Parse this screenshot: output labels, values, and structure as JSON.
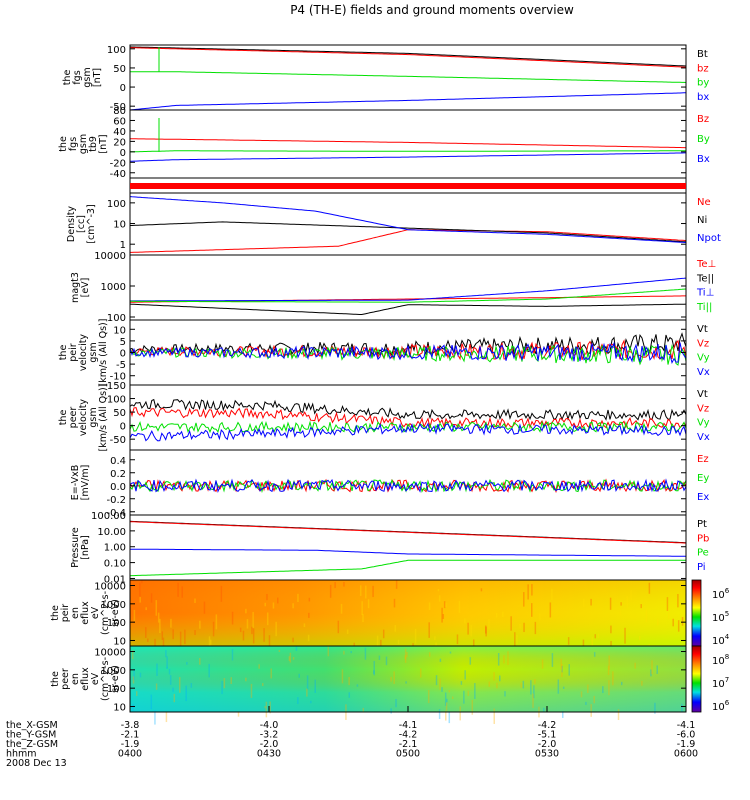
{
  "title": "P4 (TH-E) fields and ground moments overview",
  "colors": {
    "black": "#000000",
    "red": "#ff0000",
    "green": "#00e000",
    "blue": "#0000ff"
  },
  "chart_data": [
    {
      "type": "line",
      "ylabel": [
        "the",
        "fgs",
        "gsm",
        "[nT]"
      ],
      "ylim": [
        -60,
        110
      ],
      "ticks": [
        {
          "v": 100,
          "t": "100"
        },
        {
          "v": 50,
          "t": "50"
        },
        {
          "v": 0,
          "t": "0"
        },
        {
          "v": -50,
          "t": "-50"
        }
      ],
      "series": [
        {
          "name": "Bt",
          "color": "black",
          "x": [
            "04:00",
            "05:00",
            "06:00"
          ],
          "y": [
            105,
            88,
            55
          ]
        },
        {
          "name": "bz",
          "color": "red",
          "x": [
            "04:00",
            "05:00",
            "06:00"
          ],
          "y": [
            103,
            85,
            52
          ]
        },
        {
          "name": "by",
          "color": "green",
          "x": [
            "04:00",
            "04:10",
            "05:00",
            "06:00"
          ],
          "y": [
            40,
            40,
            28,
            12
          ]
        },
        {
          "name": "bx",
          "color": "blue",
          "x": [
            "04:00",
            "04:10",
            "05:00",
            "06:00"
          ],
          "y": [
            -60,
            -48,
            -35,
            -15
          ]
        }
      ]
    },
    {
      "type": "line",
      "ylabel": [
        "the",
        "fgs",
        "gsm",
        "tb9",
        "[nT]"
      ],
      "ylim": [
        -50,
        80
      ],
      "ticks": [
        {
          "v": 80,
          "t": "80"
        },
        {
          "v": 60,
          "t": "60"
        },
        {
          "v": 40,
          "t": "40"
        },
        {
          "v": 20,
          "t": "20"
        },
        {
          "v": 0,
          "t": "0"
        },
        {
          "v": -20,
          "t": "-20"
        },
        {
          "v": -40,
          "t": "-40"
        }
      ],
      "series": [
        {
          "name": "Bz",
          "color": "red",
          "x": [
            "04:00",
            "04:10",
            "05:00",
            "06:00"
          ],
          "y": [
            25,
            24,
            18,
            8
          ]
        },
        {
          "name": "By",
          "color": "green",
          "x": [
            "04:00",
            "04:10",
            "05:00",
            "06:00"
          ],
          "y": [
            0,
            2,
            1,
            2
          ]
        },
        {
          "name": "Bx",
          "color": "blue",
          "x": [
            "04:00",
            "04:10",
            "05:00",
            "06:00"
          ],
          "y": [
            -18,
            -15,
            -10,
            -2
          ]
        }
      ]
    },
    {
      "type": "line",
      "scale": "log",
      "ylabel": [
        "Density",
        "[cc]",
        "[cm^-3]"
      ],
      "ylim": [
        0.3,
        300
      ],
      "ticks": [
        {
          "v": 100,
          "t": "100"
        },
        {
          "v": 10,
          "t": "10"
        },
        {
          "v": 1,
          "t": "1"
        }
      ],
      "series": [
        {
          "name": "Ne",
          "color": "red",
          "x": [
            "04:00",
            "04:45",
            "05:00",
            "05:30",
            "06:00"
          ],
          "y": [
            0.4,
            0.8,
            5,
            4,
            1.5
          ]
        },
        {
          "name": "Ni",
          "color": "black",
          "x": [
            "04:00",
            "04:20",
            "05:00",
            "05:30",
            "06:00"
          ],
          "y": [
            8,
            12,
            6,
            3.5,
            1.3
          ]
        },
        {
          "name": "Npot",
          "color": "blue",
          "x": [
            "04:00",
            "04:20",
            "04:40",
            "05:00",
            "05:30",
            "06:00"
          ],
          "y": [
            200,
            100,
            40,
            5,
            3,
            1.2
          ]
        }
      ]
    },
    {
      "type": "line",
      "scale": "log",
      "ylabel": [
        "magt3",
        "[eV]"
      ],
      "ylim": [
        80,
        10000
      ],
      "ticks": [
        {
          "v": 10000,
          "t": "10000"
        },
        {
          "v": 1000,
          "t": "1000"
        },
        {
          "v": 100,
          "t": "100"
        }
      ],
      "series": [
        {
          "name": "Te⊥",
          "color": "red",
          "x": [
            "04:00",
            "05:00",
            "05:30",
            "06:00"
          ],
          "y": [
            300,
            380,
            420,
            480
          ]
        },
        {
          "name": "Te||",
          "color": "black",
          "x": [
            "04:00",
            "04:50",
            "05:00",
            "05:30",
            "06:00"
          ],
          "y": [
            260,
            120,
            250,
            220,
            260
          ]
        },
        {
          "name": "Ti⊥",
          "color": "blue",
          "x": [
            "04:00",
            "05:00",
            "05:30",
            "06:00"
          ],
          "y": [
            330,
            350,
            700,
            1800
          ]
        },
        {
          "name": "Ti||",
          "color": "green",
          "x": [
            "04:00",
            "05:00",
            "05:30",
            "06:00"
          ],
          "y": [
            320,
            300,
            380,
            800
          ]
        }
      ]
    },
    {
      "type": "line",
      "ylabel": [
        "the",
        "peir",
        "velocity",
        "gsm",
        "[km/s (All Qs)]"
      ],
      "ylim": [
        -14,
        14
      ],
      "ticks": [
        {
          "v": 10,
          "t": "10"
        },
        {
          "v": 5,
          "t": "5"
        },
        {
          "v": 0,
          "t": "0"
        },
        {
          "v": -5,
          "t": "-5"
        },
        {
          "v": -10,
          "t": "-10"
        }
      ],
      "series": [
        {
          "name": "Vt",
          "color": "black",
          "x": [
            "04:00",
            "05:00",
            "06:00"
          ],
          "y": [
            1.5,
            2,
            4
          ]
        },
        {
          "name": "Vz",
          "color": "red",
          "x": [
            "04:00",
            "05:00",
            "06:00"
          ],
          "y": [
            0.5,
            0.5,
            1
          ]
        },
        {
          "name": "Vy",
          "color": "green",
          "x": [
            "04:00",
            "05:00",
            "06:00"
          ],
          "y": [
            0,
            -0.5,
            -1
          ]
        },
        {
          "name": "Vx",
          "color": "blue",
          "x": [
            "04:00",
            "05:00",
            "06:00"
          ],
          "y": [
            0,
            0,
            0
          ]
        }
      ]
    },
    {
      "type": "line",
      "ylabel": [
        "the",
        "peer",
        "velocity",
        "gsm",
        "[km/s (All Qs)]"
      ],
      "ylim": [
        -90,
        150
      ],
      "ticks": [
        {
          "v": 150,
          "t": "150"
        },
        {
          "v": 100,
          "t": "100"
        },
        {
          "v": 50,
          "t": "50"
        },
        {
          "v": 0,
          "t": "0"
        },
        {
          "v": -50,
          "t": "-50"
        }
      ],
      "series": [
        {
          "name": "Vt",
          "color": "black",
          "x": [
            "04:00",
            "04:30",
            "05:00",
            "06:00"
          ],
          "y": [
            80,
            75,
            40,
            40
          ]
        },
        {
          "name": "Vz",
          "color": "red",
          "x": [
            "04:00",
            "04:30",
            "05:00",
            "06:00"
          ],
          "y": [
            50,
            45,
            10,
            10
          ]
        },
        {
          "name": "Vy",
          "color": "green",
          "x": [
            "04:00",
            "05:00",
            "06:00"
          ],
          "y": [
            -5,
            -5,
            -5
          ]
        },
        {
          "name": "Vx",
          "color": "blue",
          "x": [
            "04:00",
            "04:30",
            "05:00",
            "06:00"
          ],
          "y": [
            -40,
            -30,
            -10,
            -20
          ]
        }
      ]
    },
    {
      "type": "line",
      "ylabel": [
        "E=-VxB",
        "[mV/m]"
      ],
      "ylim": [
        -0.45,
        0.55
      ],
      "ticks": [
        {
          "v": 0.4,
          "t": "0.4"
        },
        {
          "v": 0.2,
          "t": "0.2"
        },
        {
          "v": 0,
          "t": "0.0"
        },
        {
          "v": -0.2,
          "t": "-0.2"
        },
        {
          "v": -0.4,
          "t": "-0.4"
        }
      ],
      "series": [
        {
          "name": "Ez",
          "color": "red",
          "x": [
            "04:00",
            "06:00"
          ],
          "y": [
            0,
            0
          ]
        },
        {
          "name": "Ey",
          "color": "green",
          "x": [
            "04:00",
            "06:00"
          ],
          "y": [
            0,
            0
          ]
        },
        {
          "name": "Ex",
          "color": "blue",
          "x": [
            "04:00",
            "06:00"
          ],
          "y": [
            0,
            0
          ]
        }
      ]
    },
    {
      "type": "line",
      "scale": "log",
      "ylabel": [
        "Pressure",
        "[nPa]"
      ],
      "ylim": [
        0.008,
        100
      ],
      "ticks": [
        {
          "v": 100,
          "t": "100.00"
        },
        {
          "v": 10,
          "t": "10.00"
        },
        {
          "v": 1,
          "t": "1.00"
        },
        {
          "v": 0.1,
          "t": "0.10"
        },
        {
          "v": 0.01,
          "t": "0.01"
        }
      ],
      "series": [
        {
          "name": "Pt",
          "color": "black",
          "x": [
            "04:00",
            "06:00"
          ],
          "y": [
            40,
            1.8
          ]
        },
        {
          "name": "Pb",
          "color": "red",
          "x": [
            "04:00",
            "06:00"
          ],
          "y": [
            38,
            1.7
          ]
        },
        {
          "name": "Pe",
          "color": "green",
          "x": [
            "04:00",
            "04:50",
            "05:00",
            "06:00"
          ],
          "y": [
            0.015,
            0.04,
            0.14,
            0.14
          ]
        },
        {
          "name": "Pi",
          "color": "blue",
          "x": [
            "04:00",
            "04:40",
            "05:00",
            "06:00"
          ],
          "y": [
            0.7,
            0.6,
            0.35,
            0.25
          ]
        }
      ]
    },
    {
      "type": "heatmap",
      "scale": "log",
      "ylabel": [
        "the",
        "peir",
        "en",
        "eflux",
        "eV",
        "(cm^2-s-",
        "sr-eV)"
      ],
      "ylim": [
        5,
        20000
      ],
      "ticks": [
        {
          "v": 10000,
          "t": "10000"
        },
        {
          "v": 1000,
          "t": "1000"
        },
        {
          "v": 100,
          "t": "100"
        },
        {
          "v": 10,
          "t": "10"
        }
      ],
      "colorbar": [
        "10^6",
        "10^5",
        "10^4"
      ]
    },
    {
      "type": "heatmap",
      "scale": "log",
      "ylabel": [
        "the",
        "peer",
        "en",
        "eflux",
        "eV",
        "(cm^2-s-",
        "sr-eV)"
      ],
      "ylim": [
        5,
        20000
      ],
      "ticks": [
        {
          "v": 10000,
          "t": "10000"
        },
        {
          "v": 1000,
          "t": "1000"
        },
        {
          "v": 100,
          "t": "100"
        },
        {
          "v": 10,
          "t": "10"
        }
      ],
      "colorbar": [
        "10^8",
        "10^7",
        "10^6"
      ]
    }
  ],
  "xaxis": {
    "rows": [
      {
        "label": "the_X-GSM",
        "values": [
          "-3.8",
          "-4.0",
          "-4.1",
          "-4.2",
          "-4.1"
        ]
      },
      {
        "label": "the_Y-GSM",
        "values": [
          "-2.1",
          "-3.2",
          "-4.2",
          "-5.1",
          "-6.0"
        ]
      },
      {
        "label": "the_Z-GSM",
        "values": [
          "-1.9",
          "-2.0",
          "-2.1",
          "-2.0",
          "-1.9"
        ]
      },
      {
        "label": "hhmm",
        "values": [
          "0400",
          "0430",
          "0500",
          "0530",
          "0600"
        ]
      }
    ],
    "date": "2008 Dec 13"
  }
}
